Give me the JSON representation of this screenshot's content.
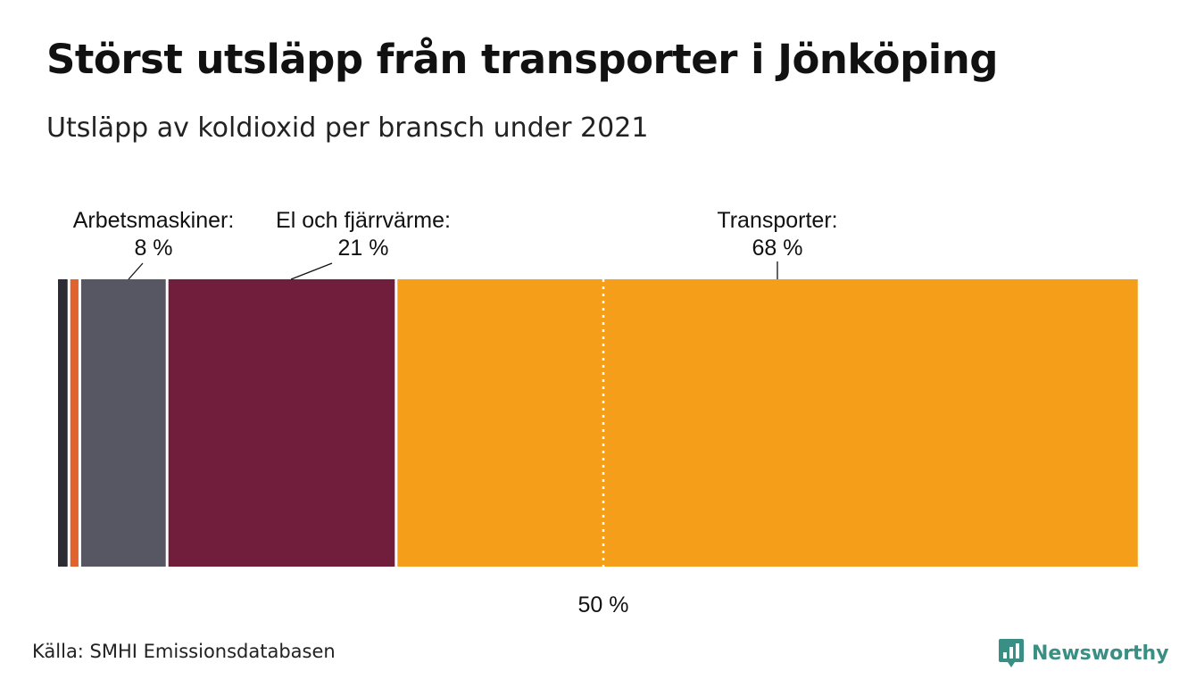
{
  "title": "Störst utsläpp från transporter i Jönköping",
  "subtitle": "Utsläpp av koldioxid per bransch under 2021",
  "source": "Källa: SMHI Emissionsdatabasen",
  "brand": "Newsworthy",
  "colors": {
    "brand": "#3a8f84",
    "divider": "#ffffff",
    "reference_line": "#ffffff"
  },
  "chart_data": {
    "type": "bar",
    "orientation": "horizontal-stacked",
    "unit": "%",
    "xlim": [
      0,
      100
    ],
    "segments": [
      {
        "name": "",
        "value": 1,
        "color": "#2c2b33",
        "label": "",
        "value_label": ""
      },
      {
        "name": "",
        "value": 1,
        "color": "#e0622d",
        "label": "",
        "value_label": ""
      },
      {
        "name": "Arbetsmaskiner",
        "value": 8,
        "color": "#575663",
        "label": "Arbetsmaskiner:",
        "value_label": "8 %"
      },
      {
        "name": "El och fjärrvärme",
        "value": 21,
        "color": "#711d3c",
        "label": "El och fjärrvärme:",
        "value_label": "21 %"
      },
      {
        "name": "Transporter",
        "value": 68,
        "color": "#f59e1a",
        "label": "Transporter:",
        "value_label": "68 %"
      }
    ],
    "reference_line": {
      "value": 50,
      "label": "50 %",
      "style": "dotted"
    }
  }
}
